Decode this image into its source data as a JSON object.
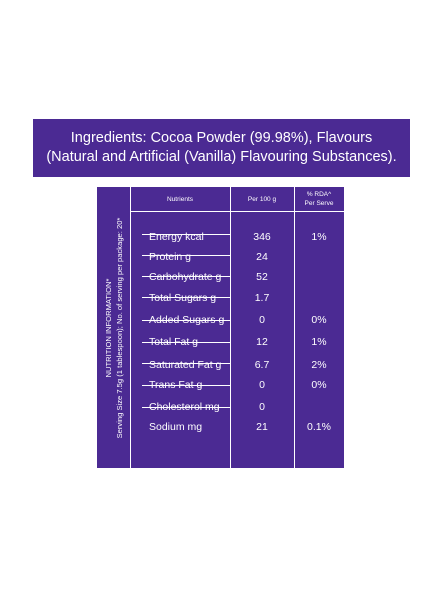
{
  "ingredients": {
    "line1": "Ingredients: Cocoa Powder (99.98%), Flavours",
    "line2": "(Natural and Artificial (Vanilla) Flavouring Substances)."
  },
  "side_label": {
    "line1": "NUTRITION INFORMATION*",
    "line2": "Serving Size 7.5g (1 tablespoon); No. of serving per package: 20*"
  },
  "table": {
    "headers": {
      "nutrients": "Nutrients",
      "per100": "Per 100 g",
      "rda_line1": "% RDA^",
      "rda_line2": "Per Serve"
    },
    "rows": [
      {
        "name": "Energy kcal",
        "per100": "346",
        "rda": "1%"
      },
      {
        "name": "Protein g",
        "per100": "24",
        "rda": ""
      },
      {
        "name": "Carbohydrate g",
        "per100": "52",
        "rda": ""
      },
      {
        "name": "Total Sugars g",
        "per100": "1.7",
        "rda": ""
      },
      {
        "name": "Added Sugars g",
        "per100": "0",
        "rda": "0%"
      },
      {
        "name": "Total Fat g",
        "per100": "12",
        "rda": "1%"
      },
      {
        "name": "Saturated Fat g",
        "per100": "6.7",
        "rda": "2%"
      },
      {
        "name": "Trans Fat g",
        "per100": "0",
        "rda": "0%"
      },
      {
        "name": "Cholesterol mg",
        "per100": "0",
        "rda": ""
      },
      {
        "name": "Sodium mg",
        "per100": "21",
        "rda": "0.1%"
      }
    ]
  },
  "colors": {
    "panel_purple": "#4b2a93",
    "text": "#ffffff",
    "background": "#ffffff"
  }
}
